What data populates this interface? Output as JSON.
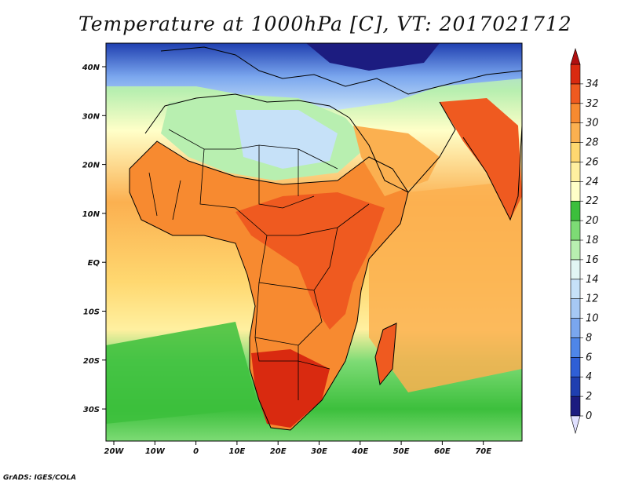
{
  "title": "Temperature at 1000hPa [C], VT: 2017021712",
  "credit": "GrADS: IGES/COLA",
  "map": {
    "lon_ticks": [
      "20W",
      "10W",
      "0",
      "10E",
      "20E",
      "30E",
      "40E",
      "50E",
      "60E",
      "70E"
    ],
    "lat_ticks": [
      "40N",
      "30N",
      "20N",
      "10N",
      "EQ",
      "10S",
      "20S",
      "30S"
    ],
    "land_icon": "africa-continent-shape"
  },
  "colorbar": {
    "labels": [
      "0",
      "2",
      "4",
      "6",
      "8",
      "10",
      "12",
      "14",
      "16",
      "18",
      "20",
      "22",
      "24",
      "26",
      "28",
      "30",
      "32",
      "34"
    ],
    "colors": [
      "#1c1c80",
      "#1f3fb0",
      "#2f5fd6",
      "#4f86e8",
      "#7aa6ee",
      "#a6c8f4",
      "#c6e1f8",
      "#e2f6f4",
      "#b8efb0",
      "#7ddb75",
      "#3cbf3c",
      "#ffffc8",
      "#fff0a0",
      "#ffd870",
      "#fbb050",
      "#f78a30",
      "#ef5a20",
      "#d92a10"
    ],
    "below_color": "#e0e0ff",
    "above_color": "#b01010"
  }
}
